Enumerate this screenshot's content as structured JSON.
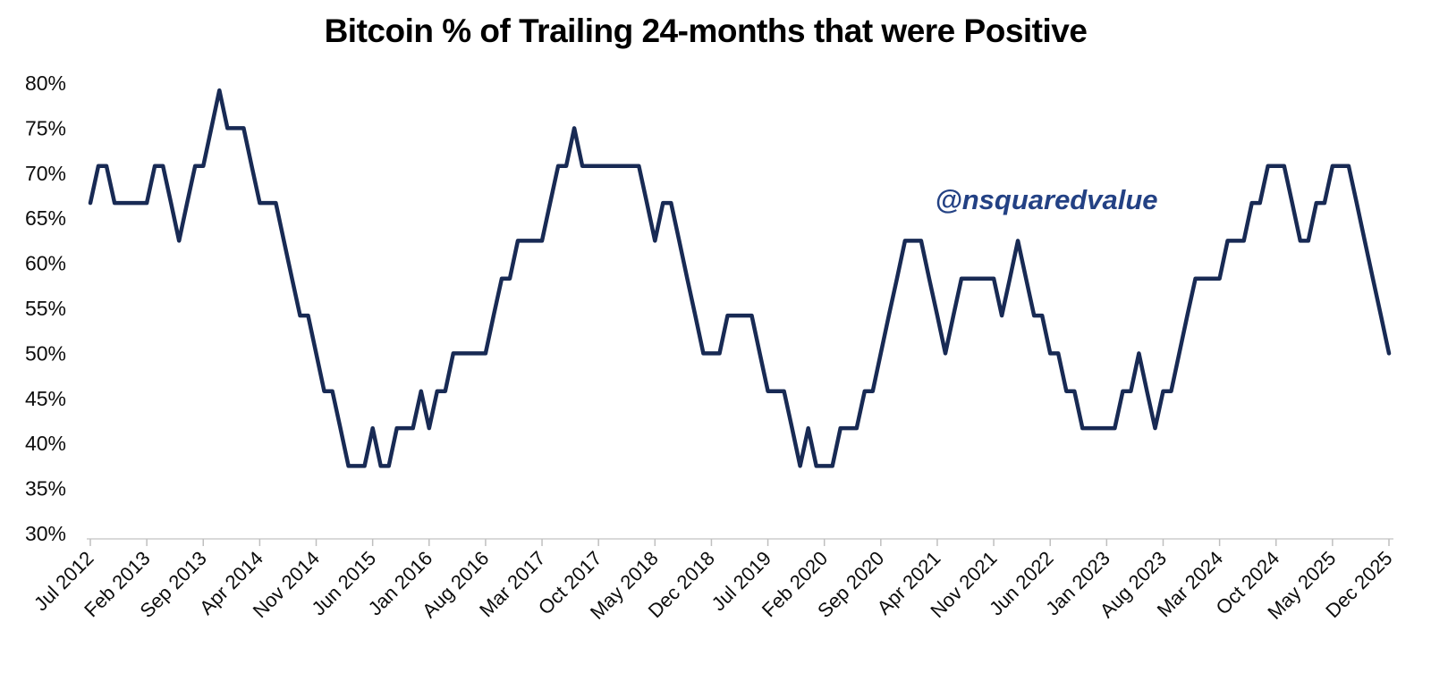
{
  "chart_data": {
    "type": "line",
    "title": "Bitcoin % of Trailing 24-months that were Positive",
    "watermark": "@nsquaredvalue",
    "unit": "%",
    "x_frequency": "monthly",
    "x_start": "Jul 2012",
    "x_end": "Dec 2025",
    "x_tick_interval_months": 7,
    "x_tick_labels": [
      "Jul 2012",
      "Feb 2013",
      "Sep 2013",
      "Apr 2014",
      "Nov 2014",
      "Jun 2015",
      "Jan 2016",
      "Aug 2016",
      "Mar 2017",
      "Oct 2017",
      "May 2018",
      "Dec 2018",
      "Jul 2019",
      "Feb 2020",
      "Sep 2020",
      "Apr 2021",
      "Nov 2021",
      "Jun 2022",
      "Jan 2023",
      "Aug 2023",
      "Mar 2024",
      "Oct 2024",
      "May 2025",
      "Dec 2025"
    ],
    "y_tick_labels": [
      "80%",
      "75%",
      "70%",
      "65%",
      "60%",
      "55%",
      "50%",
      "45%",
      "40%",
      "35%",
      "30%"
    ],
    "y_tick_values": [
      80,
      75,
      70,
      65,
      60,
      55,
      50,
      45,
      40,
      35,
      30
    ],
    "ylim": [
      30,
      80
    ],
    "gridlines": false,
    "legend": false,
    "values": [
      66.7,
      70.8,
      70.8,
      66.7,
      66.7,
      66.7,
      66.7,
      66.7,
      70.8,
      70.8,
      66.7,
      62.5,
      66.7,
      70.8,
      70.8,
      75.0,
      79.2,
      75.0,
      75.0,
      75.0,
      70.8,
      66.7,
      66.7,
      66.7,
      62.5,
      58.3,
      54.2,
      54.2,
      50.0,
      45.8,
      45.8,
      41.7,
      37.5,
      37.5,
      37.5,
      41.7,
      37.5,
      37.5,
      41.7,
      41.7,
      41.7,
      45.8,
      41.7,
      45.8,
      45.8,
      50.0,
      50.0,
      50.0,
      50.0,
      50.0,
      54.2,
      58.3,
      58.3,
      62.5,
      62.5,
      62.5,
      62.5,
      66.7,
      70.8,
      70.8,
      75.0,
      70.8,
      70.8,
      70.8,
      70.8,
      70.8,
      70.8,
      70.8,
      70.8,
      66.7,
      62.5,
      66.7,
      66.7,
      62.5,
      58.3,
      54.2,
      50.0,
      50.0,
      50.0,
      54.2,
      54.2,
      54.2,
      54.2,
      50.0,
      45.8,
      45.8,
      45.8,
      41.7,
      37.5,
      41.7,
      37.5,
      37.5,
      37.5,
      41.7,
      41.7,
      41.7,
      45.8,
      45.8,
      50.0,
      54.2,
      58.3,
      62.5,
      62.5,
      62.5,
      58.3,
      54.2,
      50.0,
      54.2,
      58.3,
      58.3,
      58.3,
      58.3,
      58.3,
      54.2,
      58.3,
      62.5,
      58.3,
      54.2,
      54.2,
      50.0,
      50.0,
      45.8,
      45.8,
      41.7,
      41.7,
      41.7,
      41.7,
      41.7,
      45.8,
      45.8,
      50.0,
      45.8,
      41.7,
      45.8,
      45.8,
      50.0,
      54.2,
      58.3,
      58.3,
      58.3,
      58.3,
      62.5,
      62.5,
      62.5,
      66.7,
      66.7,
      70.8,
      70.8,
      70.8,
      66.7,
      62.5,
      62.5,
      66.7,
      66.7,
      70.8,
      70.8,
      70.8,
      66.7,
      62.5,
      58.3,
      54.2,
      50.0
    ],
    "colors": {
      "line": "#182A54",
      "watermark": "#234184",
      "title": "#000000",
      "axis_line": "#D9D9D9",
      "tick_mark": "#BFBFBF",
      "axis_label": "#0D0D0D",
      "background": "#FFFFFF"
    }
  }
}
